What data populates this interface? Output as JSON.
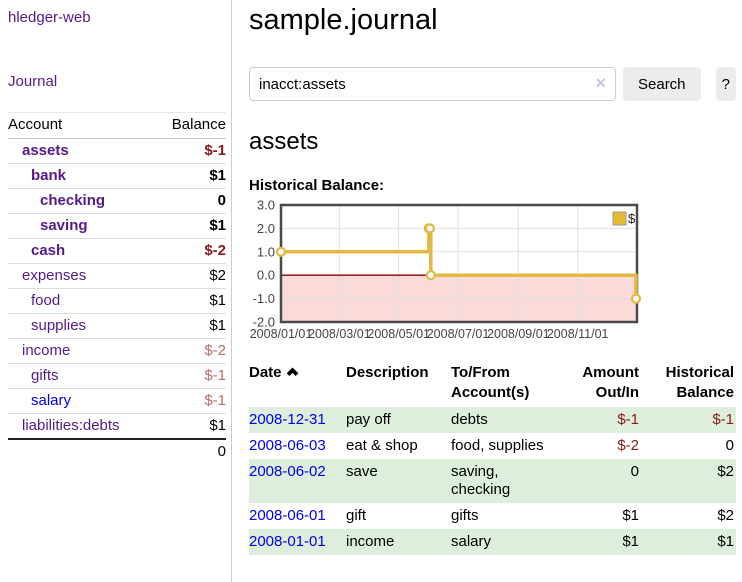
{
  "app": {
    "title": "hledger-web"
  },
  "sidebar": {
    "journal_link": "Journal",
    "accounts_table": {
      "account_header": "Account",
      "balance_header": "Balance",
      "rows": [
        {
          "name": "assets",
          "depth": 1,
          "bold": true,
          "balance": "$-1",
          "balance_style": "neg-strong",
          "link_style": "purple"
        },
        {
          "name": "bank",
          "depth": 2,
          "bold": true,
          "balance": "$1",
          "balance_style": "pos",
          "link_style": "purple"
        },
        {
          "name": "checking",
          "depth": 3,
          "bold": true,
          "balance": "0",
          "balance_style": "pos",
          "link_style": "purple"
        },
        {
          "name": "saving",
          "depth": 3,
          "bold": true,
          "balance": "$1",
          "balance_style": "pos",
          "link_style": "purple"
        },
        {
          "name": "cash",
          "depth": 2,
          "bold": true,
          "balance": "$-2",
          "balance_style": "neg-strong",
          "link_style": "purple"
        },
        {
          "name": "expenses",
          "depth": 1,
          "bold": false,
          "balance": "$2",
          "balance_style": "pos",
          "link_style": "purple"
        },
        {
          "name": "food",
          "depth": 2,
          "bold": false,
          "balance": "$1",
          "balance_style": "pos",
          "link_style": "purple"
        },
        {
          "name": "supplies",
          "depth": 2,
          "bold": false,
          "balance": "$1",
          "balance_style": "pos",
          "link_style": "purple"
        },
        {
          "name": "income",
          "depth": 1,
          "bold": false,
          "balance": "$-2",
          "balance_style": "neg-muted",
          "link_style": "purple"
        },
        {
          "name": "gifts",
          "depth": 2,
          "bold": false,
          "balance": "$-1",
          "balance_style": "neg-muted",
          "link_style": "purple"
        },
        {
          "name": "salary",
          "depth": 2,
          "bold": false,
          "balance": "$-1",
          "balance_style": "neg-muted",
          "link_style": "blue"
        },
        {
          "name": "liabilities:debts",
          "depth": 1,
          "bold": false,
          "balance": "$1",
          "balance_style": "pos",
          "link_style": "purple"
        }
      ],
      "total": "0"
    }
  },
  "main": {
    "title": "sample.journal",
    "search": {
      "value": "inacct:assets",
      "clear_icon": "×",
      "button_label": "Search",
      "help_label": "?"
    },
    "account_heading": "assets",
    "chart_label": "Historical Balance:"
  },
  "chart_data": {
    "type": "line",
    "step": true,
    "title": "Historical Balance of assets",
    "series": [
      {
        "name": "$",
        "color": "#e2b844",
        "points": [
          [
            "2008-01-01",
            1
          ],
          [
            "2008-06-01",
            2
          ],
          [
            "2008-06-02",
            2
          ],
          [
            "2008-06-03",
            0
          ],
          [
            "2008-12-31",
            -1
          ]
        ]
      }
    ],
    "x_range": [
      "2008-01-01",
      "2009-01-01"
    ],
    "x_ticks": [
      {
        "label": "2008/01/01",
        "date": "2008-01-01"
      },
      {
        "label": "2008/03/01",
        "date": "2008-03-01"
      },
      {
        "label": "2008/05/01",
        "date": "2008-05-01"
      },
      {
        "label": "2008/07/01",
        "date": "2008-07-01"
      },
      {
        "label": "2008/09/01",
        "date": "2008-09-01"
      },
      {
        "label": "2008/11/01",
        "date": "2008-11-01"
      }
    ],
    "y_ticks": [
      3.0,
      2.0,
      1.0,
      0.0,
      -1.0,
      -2.0
    ],
    "ylim": [
      -2,
      3
    ],
    "grid": true,
    "legend": {
      "label": "$",
      "position": "top-right",
      "swatch_color": "#e6ba33"
    },
    "negative_region_color": "#fbdada",
    "zero_line_color": "#8b0000"
  },
  "register_table": {
    "headers": {
      "date": "Date",
      "description": "Description",
      "accounts": "To/From Account(s)",
      "amount": "Amount Out/In",
      "balance": "Historical Balance"
    },
    "sort": {
      "column": "date",
      "direction": "ascending"
    },
    "rows": [
      {
        "date": "2008-12-31",
        "description": "pay off",
        "accounts": "debts",
        "amount": "$-1",
        "amount_negative": true,
        "balance": "$-1",
        "balance_negative": true
      },
      {
        "date": "2008-06-03",
        "description": "eat & shop",
        "accounts": "food, supplies",
        "amount": "$-2",
        "amount_negative": true,
        "balance": "0",
        "balance_negative": false
      },
      {
        "date": "2008-06-02",
        "description": "save",
        "accounts": "saving, checking",
        "amount": "0",
        "amount_negative": false,
        "balance": "$2",
        "balance_negative": false
      },
      {
        "date": "2008-06-01",
        "description": "gift",
        "accounts": "gifts",
        "amount": "$1",
        "amount_negative": false,
        "balance": "$2",
        "balance_negative": false
      },
      {
        "date": "2008-01-01",
        "description": "income",
        "accounts": "salary",
        "amount": "$1",
        "amount_negative": false,
        "balance": "$1",
        "balance_negative": false
      }
    ]
  },
  "colors": {
    "link_purple": "#551a8b",
    "link_blue": "#0000ee",
    "negative_strong": "#8e1919",
    "negative_muted": "#bc6c6c",
    "row_green": "#ddeedd",
    "series_gold": "#e2b844",
    "negative_region": "#fbdada",
    "zero_line": "#8b0000"
  }
}
